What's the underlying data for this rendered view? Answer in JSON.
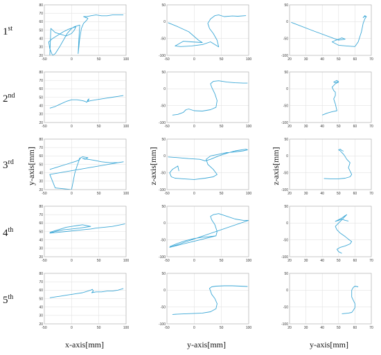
{
  "row_labels": [
    {
      "base": "1",
      "sup": "st"
    },
    {
      "base": "2",
      "sup": "nd"
    },
    {
      "base": "3",
      "sup": "rd"
    },
    {
      "base": "4",
      "sup": "th"
    },
    {
      "base": "5",
      "sup": "th"
    }
  ],
  "column_xlabels": [
    "x-axis[mm]",
    "y-axis[mm]",
    "y-axis[mm]"
  ],
  "row3_ylabels": [
    "y-axis[mm]",
    "z-axis[mm]",
    "z-axis[mm]"
  ],
  "colors": {
    "line": "#3aa7d6",
    "grid": "#e2e2e2",
    "frame": "#b5b5b5"
  },
  "chart_data": [
    {
      "type": "line",
      "row": 1,
      "col": 1,
      "xlim": [
        -50,
        100
      ],
      "ylim": [
        20,
        80
      ],
      "xticks": [
        -50,
        0,
        50,
        100
      ],
      "yticks": [
        20,
        30,
        40,
        50,
        60,
        70,
        80
      ],
      "grid": true,
      "series": [
        {
          "x": [
            -40,
            -38,
            -30,
            -20,
            -10,
            0,
            5,
            8,
            -6,
            -15,
            -25,
            -35,
            -42,
            -40,
            -35,
            -30,
            -22,
            -15,
            -8,
            0,
            5,
            10,
            15,
            14,
            13,
            12,
            15,
            18,
            22,
            28,
            30,
            26,
            22,
            28,
            35,
            45,
            55,
            65,
            75,
            85,
            95
          ],
          "y": [
            20,
            52,
            47,
            45,
            43,
            46,
            50,
            54,
            51,
            48,
            44,
            40,
            36,
            28,
            20,
            22,
            30,
            38,
            46,
            52,
            54,
            55,
            56,
            45,
            35,
            22,
            40,
            52,
            58,
            62,
            64,
            65,
            66,
            66,
            67,
            68,
            67,
            67,
            68,
            68,
            68
          ]
        }
      ]
    },
    {
      "type": "line",
      "row": 1,
      "col": 2,
      "xlim": [
        -50,
        100
      ],
      "ylim": [
        -100,
        50
      ],
      "xticks": [
        -50,
        0,
        50,
        100
      ],
      "yticks": [
        -100,
        -50,
        0,
        50
      ],
      "grid": true,
      "series": [
        {
          "x": [
            -48,
            -30,
            -10,
            8,
            15,
            -5,
            -20,
            -35,
            -25,
            -5,
            15,
            30,
            40,
            45,
            42,
            35,
            28,
            25,
            30,
            38,
            45,
            55,
            70,
            80,
            95
          ],
          "y": [
            -3,
            -15,
            -30,
            -55,
            -62,
            -60,
            -58,
            -72,
            -74,
            -72,
            -68,
            -60,
            -70,
            -75,
            -55,
            -35,
            -20,
            -5,
            8,
            18,
            20,
            15,
            17,
            16,
            18
          ]
        }
      ]
    },
    {
      "type": "line",
      "row": 1,
      "col": 3,
      "xlim": [
        20,
        70
      ],
      "ylim": [
        -100,
        50
      ],
      "xticks": [
        20,
        30,
        40,
        50,
        60,
        70
      ],
      "yticks": [
        -100,
        -50,
        0,
        50
      ],
      "grid": true,
      "series": [
        {
          "x": [
            21,
            35,
            50,
            54,
            52,
            46,
            50,
            55,
            60,
            62,
            64,
            65,
            66,
            67,
            66,
            65,
            66,
            67
          ],
          "y": [
            -2,
            -28,
            -55,
            -52,
            -48,
            -60,
            -70,
            -72,
            -74,
            -60,
            -30,
            -5,
            8,
            15,
            18,
            12,
            16,
            14
          ]
        }
      ]
    },
    {
      "type": "line",
      "row": 2,
      "col": 1,
      "xlim": [
        -50,
        100
      ],
      "ylim": [
        20,
        80
      ],
      "xticks": [
        -50,
        0,
        50,
        100
      ],
      "yticks": [
        20,
        30,
        40,
        50,
        60,
        70,
        80
      ],
      "grid": true,
      "series": [
        {
          "x": [
            -40,
            -30,
            -20,
            -10,
            0,
            10,
            20,
            25,
            28,
            30,
            32,
            30,
            35,
            45,
            55,
            65,
            75,
            85,
            95
          ],
          "y": [
            37,
            39,
            42,
            45,
            47,
            47,
            46,
            45,
            44,
            47,
            48,
            45,
            46,
            47,
            48,
            49,
            50,
            51,
            52
          ]
        }
      ]
    },
    {
      "type": "line",
      "row": 2,
      "col": 2,
      "xlim": [
        -50,
        100
      ],
      "ylim": [
        -100,
        50
      ],
      "xticks": [
        -50,
        0,
        50,
        100
      ],
      "yticks": [
        -100,
        -50,
        0,
        50
      ],
      "grid": true,
      "series": [
        {
          "x": [
            -40,
            -30,
            -20,
            -15,
            -10,
            0,
            15,
            30,
            40,
            42,
            38,
            32,
            30,
            35,
            45,
            60,
            75,
            90,
            98
          ],
          "y": [
            -78,
            -76,
            -70,
            -62,
            -60,
            -65,
            -66,
            -62,
            -55,
            -35,
            -15,
            5,
            15,
            22,
            24,
            20,
            18,
            17,
            17
          ]
        }
      ]
    },
    {
      "type": "line",
      "row": 2,
      "col": 3,
      "xlim": [
        20,
        70
      ],
      "ylim": [
        -100,
        50
      ],
      "xticks": [
        20,
        30,
        40,
        50,
        60,
        70
      ],
      "yticks": [
        -100,
        -50,
        0,
        50
      ],
      "grid": true,
      "series": [
        {
          "x": [
            40,
            43,
            46,
            49,
            48,
            47,
            48,
            48,
            47,
            46,
            48,
            50,
            49,
            47,
            48,
            50
          ],
          "y": [
            -78,
            -72,
            -68,
            -65,
            -45,
            -30,
            -20,
            -10,
            -5,
            5,
            15,
            20,
            25,
            20,
            18,
            22
          ]
        }
      ]
    },
    {
      "type": "line",
      "row": 3,
      "col": 1,
      "xlim": [
        -50,
        100
      ],
      "ylim": [
        20,
        80
      ],
      "xticks": [
        -50,
        0,
        50,
        100
      ],
      "yticks": [
        20,
        30,
        40,
        50,
        60,
        70,
        80
      ],
      "grid": true,
      "series": [
        {
          "x": [
            -40,
            -30,
            -20,
            -10,
            0,
            10,
            15,
            17,
            20,
            30,
            25,
            20,
            40,
            55,
            70,
            85,
            95,
            -40,
            -35,
            -30,
            0,
            3,
            6,
            10,
            14,
            15
          ],
          "y": [
            44,
            46,
            48,
            50,
            52,
            54,
            56,
            58,
            59,
            58,
            56,
            57,
            55,
            53,
            52,
            52,
            53,
            38,
            30,
            22,
            20,
            30,
            40,
            48,
            55,
            58
          ]
        }
      ]
    },
    {
      "type": "line",
      "row": 3,
      "col": 2,
      "xlim": [
        -50,
        100
      ],
      "ylim": [
        -100,
        50
      ],
      "xticks": [
        -50,
        0,
        50,
        100
      ],
      "yticks": [
        -100,
        -50,
        0,
        50
      ],
      "grid": true,
      "series": [
        {
          "x": [
            -48,
            -30,
            -10,
            10,
            15,
            20,
            30,
            45,
            60,
            75,
            95,
            98,
            90,
            75,
            60,
            45,
            30,
            22,
            25,
            35,
            42,
            35,
            20,
            0,
            -20,
            -35,
            -42,
            -45,
            -40,
            -35,
            -30,
            -28
          ],
          "y": [
            -3,
            -5,
            -8,
            -10,
            -12,
            -15,
            -10,
            0,
            8,
            15,
            20,
            18,
            15,
            12,
            10,
            5,
            0,
            -10,
            -25,
            -40,
            -55,
            -62,
            -66,
            -70,
            -68,
            -66,
            -62,
            -50,
            -40,
            -35,
            -30,
            -45
          ]
        }
      ]
    },
    {
      "type": "line",
      "row": 3,
      "col": 3,
      "xlim": [
        20,
        70
      ],
      "ylim": [
        -100,
        50
      ],
      "xticks": [
        20,
        30,
        40,
        50,
        60,
        70
      ],
      "yticks": [
        -100,
        -50,
        0,
        50
      ],
      "grid": true,
      "series": [
        {
          "x": [
            41,
            45,
            50,
            54,
            57,
            58,
            57,
            56,
            57,
            55,
            54,
            53,
            52,
            51,
            50,
            51,
            52,
            53
          ],
          "y": [
            -67,
            -68,
            -68,
            -66,
            -62,
            -55,
            -45,
            -35,
            -20,
            -10,
            -2,
            5,
            10,
            15,
            18,
            20,
            16,
            14
          ]
        }
      ]
    },
    {
      "type": "line",
      "row": 4,
      "col": 1,
      "xlim": [
        -50,
        100
      ],
      "ylim": [
        20,
        80
      ],
      "xticks": [
        -50,
        0,
        50,
        100
      ],
      "yticks": [
        20,
        30,
        40,
        50,
        60,
        70,
        80
      ],
      "grid": true,
      "series": [
        {
          "x": [
            -40,
            -30,
            -20,
            -10,
            0,
            10,
            20,
            35,
            15,
            0,
            -15,
            -30,
            -40,
            -25,
            -10,
            5,
            20,
            35,
            45,
            60,
            75,
            90,
            98
          ],
          "y": [
            49,
            51,
            53,
            55,
            56,
            57,
            58,
            56,
            54,
            53,
            52,
            50,
            48,
            49,
            50,
            51,
            52,
            53,
            54,
            55,
            56,
            58,
            59
          ]
        }
      ]
    },
    {
      "type": "line",
      "row": 4,
      "col": 2,
      "xlim": [
        -50,
        100
      ],
      "ylim": [
        -100,
        50
      ],
      "xticks": [
        -50,
        0,
        50,
        100
      ],
      "yticks": [
        -100,
        -50,
        0,
        50
      ],
      "grid": true,
      "series": [
        {
          "x": [
            -45,
            -30,
            -15,
            0,
            15,
            30,
            40,
            42,
            38,
            32,
            30,
            35,
            45,
            60,
            75,
            90,
            100,
            -45,
            -35,
            -20,
            -5,
            10,
            25,
            40
          ],
          "y": [
            -70,
            -60,
            -52,
            -46,
            -42,
            -40,
            -38,
            -25,
            -5,
            10,
            20,
            25,
            28,
            20,
            12,
            8,
            8,
            -72,
            -68,
            -62,
            -56,
            -50,
            -44,
            -38
          ]
        }
      ]
    },
    {
      "type": "line",
      "row": 4,
      "col": 3,
      "xlim": [
        20,
        70
      ],
      "ylim": [
        -100,
        50
      ],
      "xticks": [
        20,
        30,
        40,
        50,
        60,
        70
      ],
      "yticks": [
        -100,
        -50,
        0,
        50
      ],
      "grid": true,
      "series": [
        {
          "x": [
            52,
            50,
            49,
            51,
            54,
            57,
            58,
            56,
            54,
            51,
            49,
            48,
            50,
            52,
            54,
            55,
            54,
            52,
            50,
            48,
            50,
            52,
            54,
            56
          ],
          "y": [
            -90,
            -85,
            -78,
            -72,
            -68,
            -62,
            -55,
            -48,
            -40,
            -30,
            -20,
            -10,
            0,
            10,
            20,
            25,
            22,
            15,
            10,
            5,
            8,
            12,
            8,
            6
          ]
        }
      ]
    },
    {
      "type": "line",
      "row": 5,
      "col": 1,
      "xlim": [
        -50,
        100
      ],
      "ylim": [
        20,
        80
      ],
      "xticks": [
        -50,
        0,
        50,
        100
      ],
      "yticks": [
        20,
        30,
        40,
        50,
        60,
        70,
        80
      ],
      "grid": true,
      "series": [
        {
          "x": [
            -40,
            -30,
            -20,
            -10,
            0,
            10,
            20,
            25,
            30,
            35,
            38,
            40,
            37,
            45,
            55,
            65,
            75,
            85,
            95
          ],
          "y": [
            51,
            52,
            53,
            54,
            55,
            56,
            57,
            58,
            59,
            60,
            61,
            59,
            57,
            58,
            58,
            59,
            59,
            60,
            62
          ]
        }
      ]
    },
    {
      "type": "line",
      "row": 5,
      "col": 2,
      "xlim": [
        -50,
        100
      ],
      "ylim": [
        -100,
        50
      ],
      "xticks": [
        -50,
        0,
        50,
        100
      ],
      "yticks": [
        -100,
        -50,
        0,
        50
      ],
      "grid": true,
      "series": [
        {
          "x": [
            -40,
            -30,
            -15,
            0,
            15,
            30,
            40,
            42,
            38,
            32,
            30,
            28,
            32,
            40,
            55,
            70,
            85,
            98
          ],
          "y": [
            -72,
            -71,
            -70,
            -69,
            -68,
            -64,
            -55,
            -40,
            -25,
            -12,
            -2,
            5,
            10,
            12,
            13,
            13,
            12,
            11
          ]
        }
      ]
    },
    {
      "type": "line",
      "row": 5,
      "col": 3,
      "xlim": [
        20,
        70
      ],
      "ylim": [
        -100,
        50
      ],
      "xticks": [
        20,
        30,
        40,
        50,
        60,
        70
      ],
      "yticks": [
        -100,
        -50,
        0,
        50
      ],
      "grid": true,
      "series": [
        {
          "x": [
            52,
            54,
            56,
            58,
            59,
            60,
            60,
            59,
            58,
            58,
            58,
            59,
            60,
            62
          ],
          "y": [
            -70,
            -69,
            -68,
            -66,
            -60,
            -52,
            -40,
            -30,
            -20,
            -10,
            0,
            8,
            12,
            10
          ]
        }
      ]
    }
  ]
}
